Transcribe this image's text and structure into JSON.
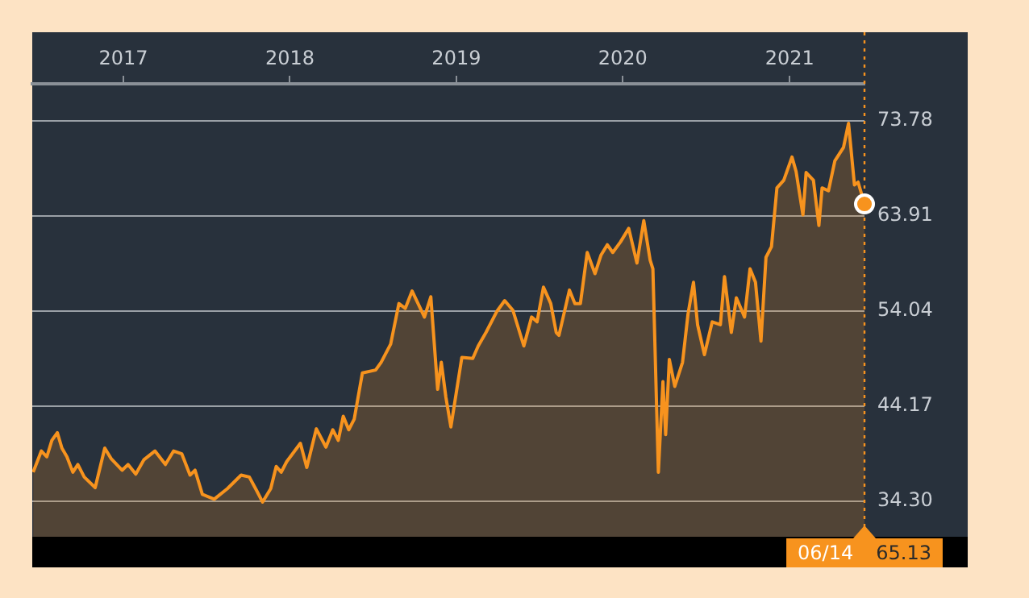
{
  "chart_data": {
    "type": "area",
    "xlim": [
      "2016-06-15",
      "2021-06-14"
    ],
    "xticks": [
      {
        "value": "2017-01-01",
        "label": "2017"
      },
      {
        "value": "2018-01-01",
        "label": "2018"
      },
      {
        "value": "2019-01-01",
        "label": "2019"
      },
      {
        "value": "2020-01-01",
        "label": "2020"
      },
      {
        "value": "2021-01-01",
        "label": "2021"
      }
    ],
    "ylim": [
      30.6,
      77.6
    ],
    "yticks": [
      {
        "value": 34.3,
        "label": "34.30"
      },
      44.17,
      54.04,
      63.91,
      73.78
    ],
    "grid": "y",
    "legend": false,
    "marker": "none",
    "x": [
      "2016-06-17",
      "2016-07-05",
      "2016-07-17",
      "2016-07-28",
      "2016-08-09",
      "2016-08-19",
      "2016-08-30",
      "2016-09-12",
      "2016-09-23",
      "2016-10-07",
      "2016-10-31",
      "2016-11-21",
      "2016-12-05",
      "2016-12-29",
      "2017-01-11",
      "2017-01-28",
      "2017-02-15",
      "2017-03-11",
      "2017-04-03",
      "2017-04-21",
      "2017-05-09",
      "2017-05-27",
      "2017-06-07",
      "2017-06-23",
      "2017-07-19",
      "2017-08-17",
      "2017-09-16",
      "2017-10-04",
      "2017-10-21",
      "2017-11-02",
      "2017-11-20",
      "2017-12-02",
      "2017-12-13",
      "2017-12-25",
      "2018-01-24",
      "2018-02-07",
      "2018-02-28",
      "2018-03-21",
      "2018-04-05",
      "2018-04-17",
      "2018-04-28",
      "2018-05-10",
      "2018-05-22",
      "2018-06-09",
      "2018-07-08",
      "2018-07-20",
      "2018-08-10",
      "2018-08-28",
      "2018-09-11",
      "2018-09-26",
      "2018-10-23",
      "2018-11-06",
      "2018-11-21",
      "2018-11-29",
      "2018-12-09",
      "2018-12-20",
      "2019-01-13",
      "2019-02-06",
      "2019-02-18",
      "2019-03-07",
      "2019-03-31",
      "2019-04-17",
      "2019-05-05",
      "2019-05-29",
      "2019-06-15",
      "2019-06-27",
      "2019-07-11",
      "2019-07-27",
      "2019-08-08",
      "2019-08-14",
      "2019-09-06",
      "2019-09-18",
      "2019-09-30",
      "2019-10-15",
      "2019-11-01",
      "2019-11-14",
      "2019-11-28",
      "2019-12-10",
      "2019-12-27",
      "2020-01-14",
      "2020-02-01",
      "2020-02-16",
      "2020-03-01",
      "2020-03-07",
      "2020-03-19",
      "2020-03-29",
      "2020-04-04",
      "2020-04-12",
      "2020-04-24",
      "2020-05-11",
      "2020-05-23",
      "2020-06-04",
      "2020-06-13",
      "2020-06-28",
      "2020-07-15",
      "2020-08-02",
      "2020-08-11",
      "2020-08-26",
      "2020-09-06",
      "2020-09-24",
      "2020-10-06",
      "2020-10-18",
      "2020-10-30",
      "2020-11-10",
      "2020-11-22",
      "2020-12-04",
      "2020-12-19",
      "2021-01-06",
      "2021-01-15",
      "2021-01-30",
      "2021-02-06",
      "2021-02-22",
      "2021-03-06",
      "2021-03-13",
      "2021-03-27",
      "2021-04-10",
      "2021-04-29",
      "2021-05-10",
      "2021-05-23",
      "2021-05-31",
      "2021-06-14"
    ],
    "series": [
      {
        "color": "#f7931e",
        "values": [
          37.3,
          39.5,
          38.9,
          40.6,
          41.4,
          39.8,
          38.9,
          37.3,
          38.1,
          36.8,
          35.7,
          39.8,
          38.7,
          37.5,
          38.1,
          37.1,
          38.6,
          39.5,
          38.1,
          39.5,
          39.2,
          37.0,
          37.5,
          35.0,
          34.5,
          35.6,
          37.0,
          36.8,
          35.3,
          34.2,
          35.6,
          37.9,
          37.3,
          38.4,
          40.3,
          37.8,
          41.8,
          39.9,
          41.7,
          40.6,
          43.1,
          41.7,
          42.8,
          47.6,
          47.9,
          48.7,
          50.6,
          54.8,
          54.3,
          56.1,
          53.4,
          55.5,
          45.9,
          48.7,
          45.1,
          42.0,
          49.2,
          49.1,
          50.4,
          51.8,
          54.0,
          55.1,
          54.1,
          50.4,
          53.4,
          52.9,
          56.5,
          54.8,
          51.8,
          51.5,
          56.2,
          54.8,
          54.8,
          60.1,
          57.9,
          59.8,
          60.9,
          60.1,
          61.2,
          62.6,
          59.0,
          63.4,
          59.3,
          58.4,
          37.3,
          46.7,
          41.2,
          49.0,
          46.2,
          48.7,
          53.7,
          57.0,
          52.6,
          49.5,
          52.9,
          52.6,
          57.6,
          51.8,
          55.4,
          53.4,
          58.4,
          57.0,
          50.9,
          59.6,
          60.7,
          66.8,
          67.6,
          70.0,
          68.5,
          64.0,
          68.4,
          67.6,
          62.9,
          66.8,
          66.5,
          69.6,
          71.0,
          73.5,
          67.1,
          67.4,
          65.13
        ]
      }
    ],
    "ref_lines": [
      {
        "axis": "x",
        "value": "2021-06-14",
        "color": "#f7931e",
        "line_style": "dotted"
      }
    ],
    "annotations": [
      "06/14",
      "65.13"
    ]
  }
}
